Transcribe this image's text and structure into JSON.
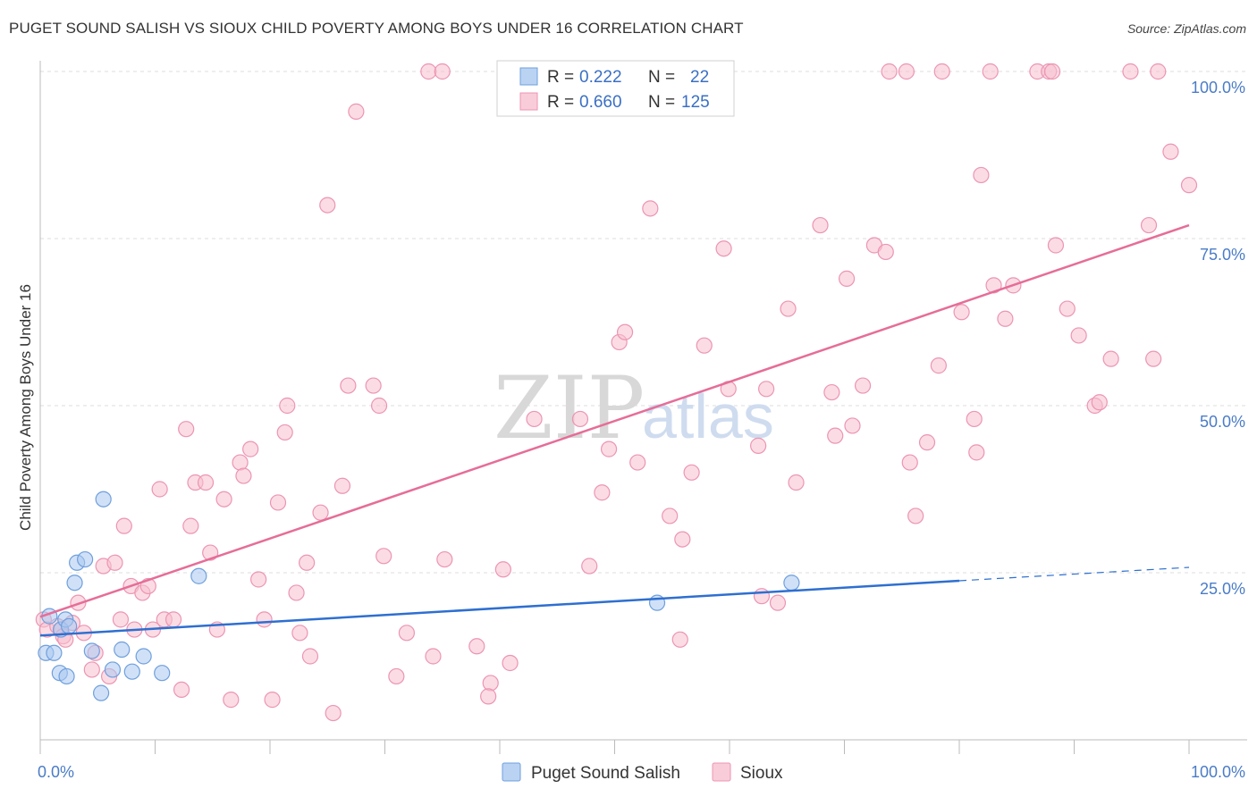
{
  "title": "PUGET SOUND SALISH VS SIOUX CHILD POVERTY AMONG BOYS UNDER 16 CORRELATION CHART",
  "source": "Source: ZipAtlas.com",
  "watermark": {
    "zip": "ZIP",
    "atlas": "atlas"
  },
  "colors": {
    "blue_fill": "#a9c8f0",
    "blue_stroke": "#6f9fdd",
    "blue_line": "#2e6fd0",
    "pink_fill": "#f7bfd0",
    "pink_stroke": "#ec95b2",
    "pink_line": "#e66d98"
  },
  "legend": {
    "series": [
      {
        "r_label": "R =",
        "r_value": "0.222",
        "n_label": "N =",
        "n_value": "22"
      },
      {
        "r_label": "R =",
        "r_value": "0.660",
        "n_label": "N =",
        "n_value": "125"
      }
    ]
  },
  "chart_data": {
    "type": "scatter",
    "title": "PUGET SOUND SALISH VS SIOUX CHILD POVERTY AMONG BOYS UNDER 16 CORRELATION CHART",
    "xlabel": "",
    "ylabel": "Child Poverty Among Boys Under 16",
    "xlim": [
      0,
      100
    ],
    "ylim": [
      0,
      100
    ],
    "x_ticks": [
      "0.0%",
      "100.0%"
    ],
    "y_ticks": [
      {
        "value": 25,
        "label": "25.0%"
      },
      {
        "value": 50,
        "label": "50.0%"
      },
      {
        "value": 75,
        "label": "75.0%"
      },
      {
        "value": 100,
        "label": "100.0%"
      }
    ],
    "legend_position": "top-center",
    "grid": true,
    "series": [
      {
        "name": "Puget Sound Salish",
        "r": 0.222,
        "n": 22,
        "trend": {
          "x0": 0,
          "y0": 15.6,
          "x1": 80,
          "y1": 23.8,
          "dash_to_x": 100,
          "dash_to_y": 25.8
        },
        "points": [
          [
            0.5,
            13
          ],
          [
            0.8,
            18.5
          ],
          [
            1.2,
            13
          ],
          [
            1.7,
            10
          ],
          [
            1.8,
            16.5
          ],
          [
            2.2,
            18
          ],
          [
            2.3,
            9.5
          ],
          [
            2.5,
            17
          ],
          [
            3,
            23.5
          ],
          [
            3.2,
            26.5
          ],
          [
            3.9,
            27
          ],
          [
            4.5,
            13.3
          ],
          [
            5.3,
            7
          ],
          [
            5.5,
            36
          ],
          [
            6.3,
            10.5
          ],
          [
            7.1,
            13.5
          ],
          [
            8,
            10.2
          ],
          [
            9,
            12.5
          ],
          [
            10.6,
            10
          ],
          [
            13.8,
            24.5
          ],
          [
            53.7,
            20.5
          ],
          [
            65.4,
            23.5
          ]
        ]
      },
      {
        "name": "Sioux",
        "r": 0.66,
        "n": 125,
        "trend": {
          "x0": 0,
          "y0": 18.4,
          "x1": 100,
          "y1": 77
        },
        "points": [
          [
            0.3,
            18
          ],
          [
            0.6,
            16.5
          ],
          [
            1.5,
            17
          ],
          [
            1.8,
            16.5
          ],
          [
            2,
            15.5
          ],
          [
            2.2,
            15
          ],
          [
            2.8,
            17.5
          ],
          [
            3.3,
            20.5
          ],
          [
            3.8,
            16
          ],
          [
            4.5,
            10.5
          ],
          [
            4.8,
            13
          ],
          [
            5.5,
            26
          ],
          [
            6,
            9.5
          ],
          [
            6.5,
            26.5
          ],
          [
            7,
            18
          ],
          [
            7.3,
            32
          ],
          [
            7.9,
            23
          ],
          [
            8.2,
            16.5
          ],
          [
            8.9,
            22
          ],
          [
            9.4,
            23
          ],
          [
            9.8,
            16.5
          ],
          [
            10.4,
            37.5
          ],
          [
            10.8,
            18
          ],
          [
            11.6,
            18
          ],
          [
            12.3,
            7.5
          ],
          [
            12.7,
            46.5
          ],
          [
            13.1,
            32
          ],
          [
            13.5,
            38.5
          ],
          [
            14.4,
            38.5
          ],
          [
            14.8,
            28
          ],
          [
            15.4,
            16.5
          ],
          [
            16,
            36
          ],
          [
            16.6,
            6
          ],
          [
            17.4,
            41.5
          ],
          [
            17.7,
            39.5
          ],
          [
            18.3,
            43.5
          ],
          [
            19,
            24
          ],
          [
            19.5,
            18
          ],
          [
            20.2,
            6
          ],
          [
            20.7,
            35.5
          ],
          [
            21.3,
            46
          ],
          [
            21.5,
            50
          ],
          [
            22.3,
            22
          ],
          [
            22.6,
            16
          ],
          [
            23.2,
            26.5
          ],
          [
            23.5,
            12.5
          ],
          [
            24.4,
            34
          ],
          [
            25,
            80
          ],
          [
            25.5,
            4
          ],
          [
            26.3,
            38
          ],
          [
            26.8,
            53
          ],
          [
            27.5,
            94
          ],
          [
            29,
            53
          ],
          [
            29.5,
            50
          ],
          [
            29.9,
            27.5
          ],
          [
            31,
            9.5
          ],
          [
            31.9,
            16
          ],
          [
            33.8,
            100
          ],
          [
            34.2,
            12.5
          ],
          [
            35,
            100
          ],
          [
            35.2,
            27
          ],
          [
            38,
            14
          ],
          [
            39.2,
            8.5
          ],
          [
            39,
            6.5
          ],
          [
            40.3,
            25.5
          ],
          [
            40.9,
            11.5
          ],
          [
            43,
            48
          ],
          [
            47,
            48
          ],
          [
            47.8,
            26
          ],
          [
            48.9,
            37
          ],
          [
            49.5,
            43.5
          ],
          [
            50.4,
            59.5
          ],
          [
            50.9,
            61
          ],
          [
            52,
            41.5
          ],
          [
            53.1,
            79.5
          ],
          [
            54.8,
            33.5
          ],
          [
            55.9,
            30
          ],
          [
            55.7,
            15
          ],
          [
            56.7,
            40
          ],
          [
            57.8,
            59
          ],
          [
            59.5,
            73.5
          ],
          [
            59.9,
            52.5
          ],
          [
            62.5,
            44
          ],
          [
            62.8,
            21.5
          ],
          [
            63.2,
            52.5
          ],
          [
            64.2,
            20.5
          ],
          [
            65.1,
            64.5
          ],
          [
            65.8,
            38.5
          ],
          [
            67.9,
            77
          ],
          [
            68.9,
            52
          ],
          [
            69.2,
            45.5
          ],
          [
            70.2,
            69
          ],
          [
            70.7,
            47
          ],
          [
            71.6,
            53
          ],
          [
            72.6,
            74
          ],
          [
            73.6,
            73
          ],
          [
            73.9,
            100
          ],
          [
            75.4,
            100
          ],
          [
            75.7,
            41.5
          ],
          [
            76.2,
            33.5
          ],
          [
            77.2,
            44.5
          ],
          [
            78.2,
            56
          ],
          [
            78.5,
            100
          ],
          [
            80.2,
            64
          ],
          [
            81.3,
            48
          ],
          [
            81.5,
            43
          ],
          [
            81.9,
            84.5
          ],
          [
            82.7,
            100
          ],
          [
            83,
            68
          ],
          [
            84,
            63
          ],
          [
            84.7,
            68
          ],
          [
            86.8,
            100
          ],
          [
            87.8,
            100
          ],
          [
            88.1,
            100
          ],
          [
            88.4,
            74
          ],
          [
            89.4,
            64.5
          ],
          [
            90.4,
            60.5
          ],
          [
            91.8,
            50
          ],
          [
            92.2,
            50.5
          ],
          [
            93.2,
            57
          ],
          [
            94.9,
            100
          ],
          [
            96.5,
            77
          ],
          [
            96.9,
            57
          ],
          [
            97.3,
            100
          ],
          [
            98.4,
            88
          ],
          [
            100,
            83
          ]
        ]
      }
    ]
  }
}
